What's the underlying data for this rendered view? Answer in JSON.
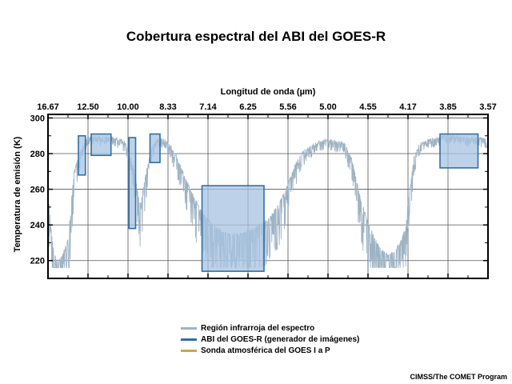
{
  "chart_data": {
    "type": "line",
    "title": "Cobertura espectral del ABI del GOES-R",
    "xlabel": "Longitud de onda (µm)",
    "ylabel": "Temperatura de emisión (K)",
    "x_axis_position": "top",
    "x_ticks": [
      "16.67",
      "12.50",
      "10.00",
      "8.33",
      "7.14",
      "6.25",
      "5.56",
      "5.00",
      "4.55",
      "4.17",
      "3.85",
      "3.57"
    ],
    "x_tick_wavenumbers": [
      600,
      800,
      1000,
      1200,
      1400,
      1600,
      1800,
      2000,
      2200,
      2400,
      2600,
      2800
    ],
    "xlim_wavenumber": [
      600,
      2800
    ],
    "ylim": [
      210,
      302
    ],
    "y_ticks": [
      220,
      240,
      260,
      280,
      300
    ],
    "grid": true,
    "colors": {
      "spectrum": "#9eb3c4",
      "abi_fill": "#a7c3e2",
      "abi_edge": "#2f6fa8",
      "sounder": "#c8a850"
    },
    "series": [
      {
        "name": "Región infrarroja del espectro",
        "x_wavenumber": [
          600,
          612,
          625,
          640,
          655,
          670,
          685,
          700,
          715,
          730,
          745,
          760,
          775,
          790,
          800,
          830,
          860,
          900,
          940,
          980,
          1000,
          1030,
          1060,
          1090,
          1120,
          1150,
          1180,
          1210,
          1240,
          1270,
          1300,
          1330,
          1360,
          1400,
          1440,
          1480,
          1520,
          1560,
          1600,
          1640,
          1680,
          1720,
          1760,
          1800,
          1840,
          1880,
          1920,
          1960,
          2000,
          2040,
          2080,
          2120,
          2160,
          2200,
          2240,
          2270,
          2300,
          2330,
          2360,
          2390,
          2400,
          2430,
          2460,
          2500,
          2550,
          2600,
          2650,
          2700,
          2750,
          2800
        ],
        "y": [
          262,
          240,
          228,
          220,
          219,
          222,
          226,
          232,
          250,
          268,
          275,
          280,
          284,
          287,
          288,
          289,
          288,
          289,
          288,
          286,
          282,
          270,
          250,
          268,
          283,
          288,
          287,
          284,
          278,
          270,
          262,
          255,
          248,
          242,
          238,
          235,
          234,
          234,
          236,
          238,
          240,
          245,
          252,
          262,
          274,
          281,
          284,
          286,
          287,
          286,
          285,
          276,
          255,
          240,
          230,
          225,
          222,
          224,
          229,
          238,
          252,
          277,
          285,
          287,
          288,
          289,
          289,
          288,
          288,
          287
        ]
      },
      {
        "name": "ABI del GOES-R (generador de imágenes)",
        "bands": [
          {
            "x_range": [
              752,
              787
            ],
            "y_range": [
              268,
              290
            ]
          },
          {
            "x_range": [
              816,
              915
            ],
            "y_range": [
              279,
              291
            ]
          },
          {
            "x_range": [
              1005,
              1038
            ],
            "y_range": [
              238,
              289
            ]
          },
          {
            "x_range": [
              1110,
              1160
            ],
            "y_range": [
              275,
              291
            ]
          },
          {
            "x_range": [
              1370,
              1680
            ],
            "y_range": [
              214,
              262
            ]
          },
          {
            "x_range": [
              2560,
              2750
            ],
            "y_range": [
              272,
              291
            ]
          }
        ]
      },
      {
        "name": "Sonda atmosférica del GOES I a P",
        "values": []
      }
    ],
    "legend_placement": "bottom",
    "credit": "CIMSS/The COMET Program"
  }
}
